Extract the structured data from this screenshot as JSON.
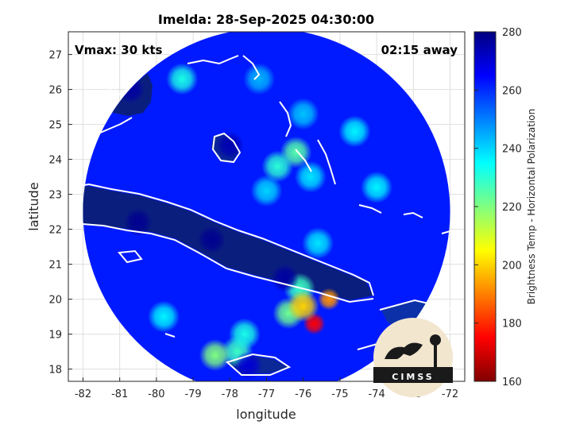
{
  "chart_data": {
    "type": "heatmap",
    "title": "Imelda: 28-Sep-2025 04:30:00",
    "xlabel": "longitude",
    "ylabel": "latitude",
    "xlim": [
      -82.4,
      -71.6
    ],
    "ylim": [
      17.65,
      27.65
    ],
    "x_ticks": [
      -82,
      -81,
      -80,
      -79,
      -78,
      -77,
      -76,
      -75,
      -74,
      -73,
      -72
    ],
    "y_ticks": [
      18,
      19,
      20,
      21,
      22,
      23,
      24,
      25,
      26,
      27
    ],
    "grid": true,
    "annotations": {
      "vmax": "Vmax: 30 kts",
      "time_away": "02:15 away"
    },
    "colorbar": {
      "label": "Brightness Temp - Horizontal Polarization",
      "range": [
        160,
        280
      ],
      "ticks": [
        160,
        180,
        200,
        220,
        240,
        260,
        280
      ],
      "colors": [
        "#800000",
        "#ff0000",
        "#ff8000",
        "#ffff00",
        "#80ff80",
        "#00ffff",
        "#0080ff",
        "#0000ff",
        "#000080"
      ]
    },
    "swath": {
      "center": [
        -77.0,
        22.5
      ],
      "radius_deg": 5.0,
      "background_value": 262
    },
    "features": [
      {
        "name": "cold cloud cluster",
        "lon": -75.7,
        "lat": 19.3,
        "value": 175
      },
      {
        "name": "cold cloud cluster",
        "lon": -75.3,
        "lat": 20.0,
        "value": 192
      },
      {
        "name": "cold cloud cluster",
        "lon": -76.1,
        "lat": 20.3,
        "value": 228
      },
      {
        "name": "cold cloud cluster",
        "lon": -76.4,
        "lat": 19.6,
        "value": 222
      },
      {
        "name": "cold cloud cluster",
        "lon": -76.0,
        "lat": 19.8,
        "value": 200
      },
      {
        "name": "convective band",
        "lon": -76.2,
        "lat": 24.2,
        "value": 225
      },
      {
        "name": "convective band",
        "lon": -76.7,
        "lat": 23.8,
        "value": 230
      },
      {
        "name": "convective band",
        "lon": -75.8,
        "lat": 23.5,
        "value": 238
      },
      {
        "name": "convective band",
        "lon": -77.0,
        "lat": 23.1,
        "value": 240
      },
      {
        "name": "convective band",
        "lon": -74.6,
        "lat": 24.8,
        "value": 236
      },
      {
        "name": "convective band",
        "lon": -74.0,
        "lat": 23.2,
        "value": 236
      },
      {
        "name": "scattered convection",
        "lon": -79.3,
        "lat": 26.3,
        "value": 232
      },
      {
        "name": "scattered convection",
        "lon": -77.2,
        "lat": 26.3,
        "value": 244
      },
      {
        "name": "scattered convection",
        "lon": -76.0,
        "lat": 25.3,
        "value": 242
      },
      {
        "name": "scattered convection",
        "lon": -77.8,
        "lat": 18.5,
        "value": 228
      },
      {
        "name": "scattered convection",
        "lon": -78.4,
        "lat": 18.4,
        "value": 220
      },
      {
        "name": "scattered convection",
        "lon": -77.6,
        "lat": 19.0,
        "value": 232
      },
      {
        "name": "scattered convection",
        "lon": -79.8,
        "lat": 19.5,
        "value": 236
      },
      {
        "name": "scattered convection",
        "lon": -75.6,
        "lat": 21.6,
        "value": 238
      },
      {
        "name": "warm land (Cuba)",
        "lon": -80.5,
        "lat": 22.2,
        "value": 278
      },
      {
        "name": "warm land (Cuba)",
        "lon": -78.5,
        "lat": 21.7,
        "value": 278
      },
      {
        "name": "warm land (Cuba)",
        "lon": -76.5,
        "lat": 20.6,
        "value": 276
      },
      {
        "name": "warm land (Florida)",
        "lon": -80.7,
        "lat": 26.0,
        "value": 276
      },
      {
        "name": "warm land (Andros)",
        "lon": -78.0,
        "lat": 24.4,
        "value": 274
      },
      {
        "name": "warm land (Jamaica)",
        "lon": -77.5,
        "lat": 18.1,
        "value": 270
      }
    ]
  },
  "logo": {
    "text": "CIMSS"
  }
}
